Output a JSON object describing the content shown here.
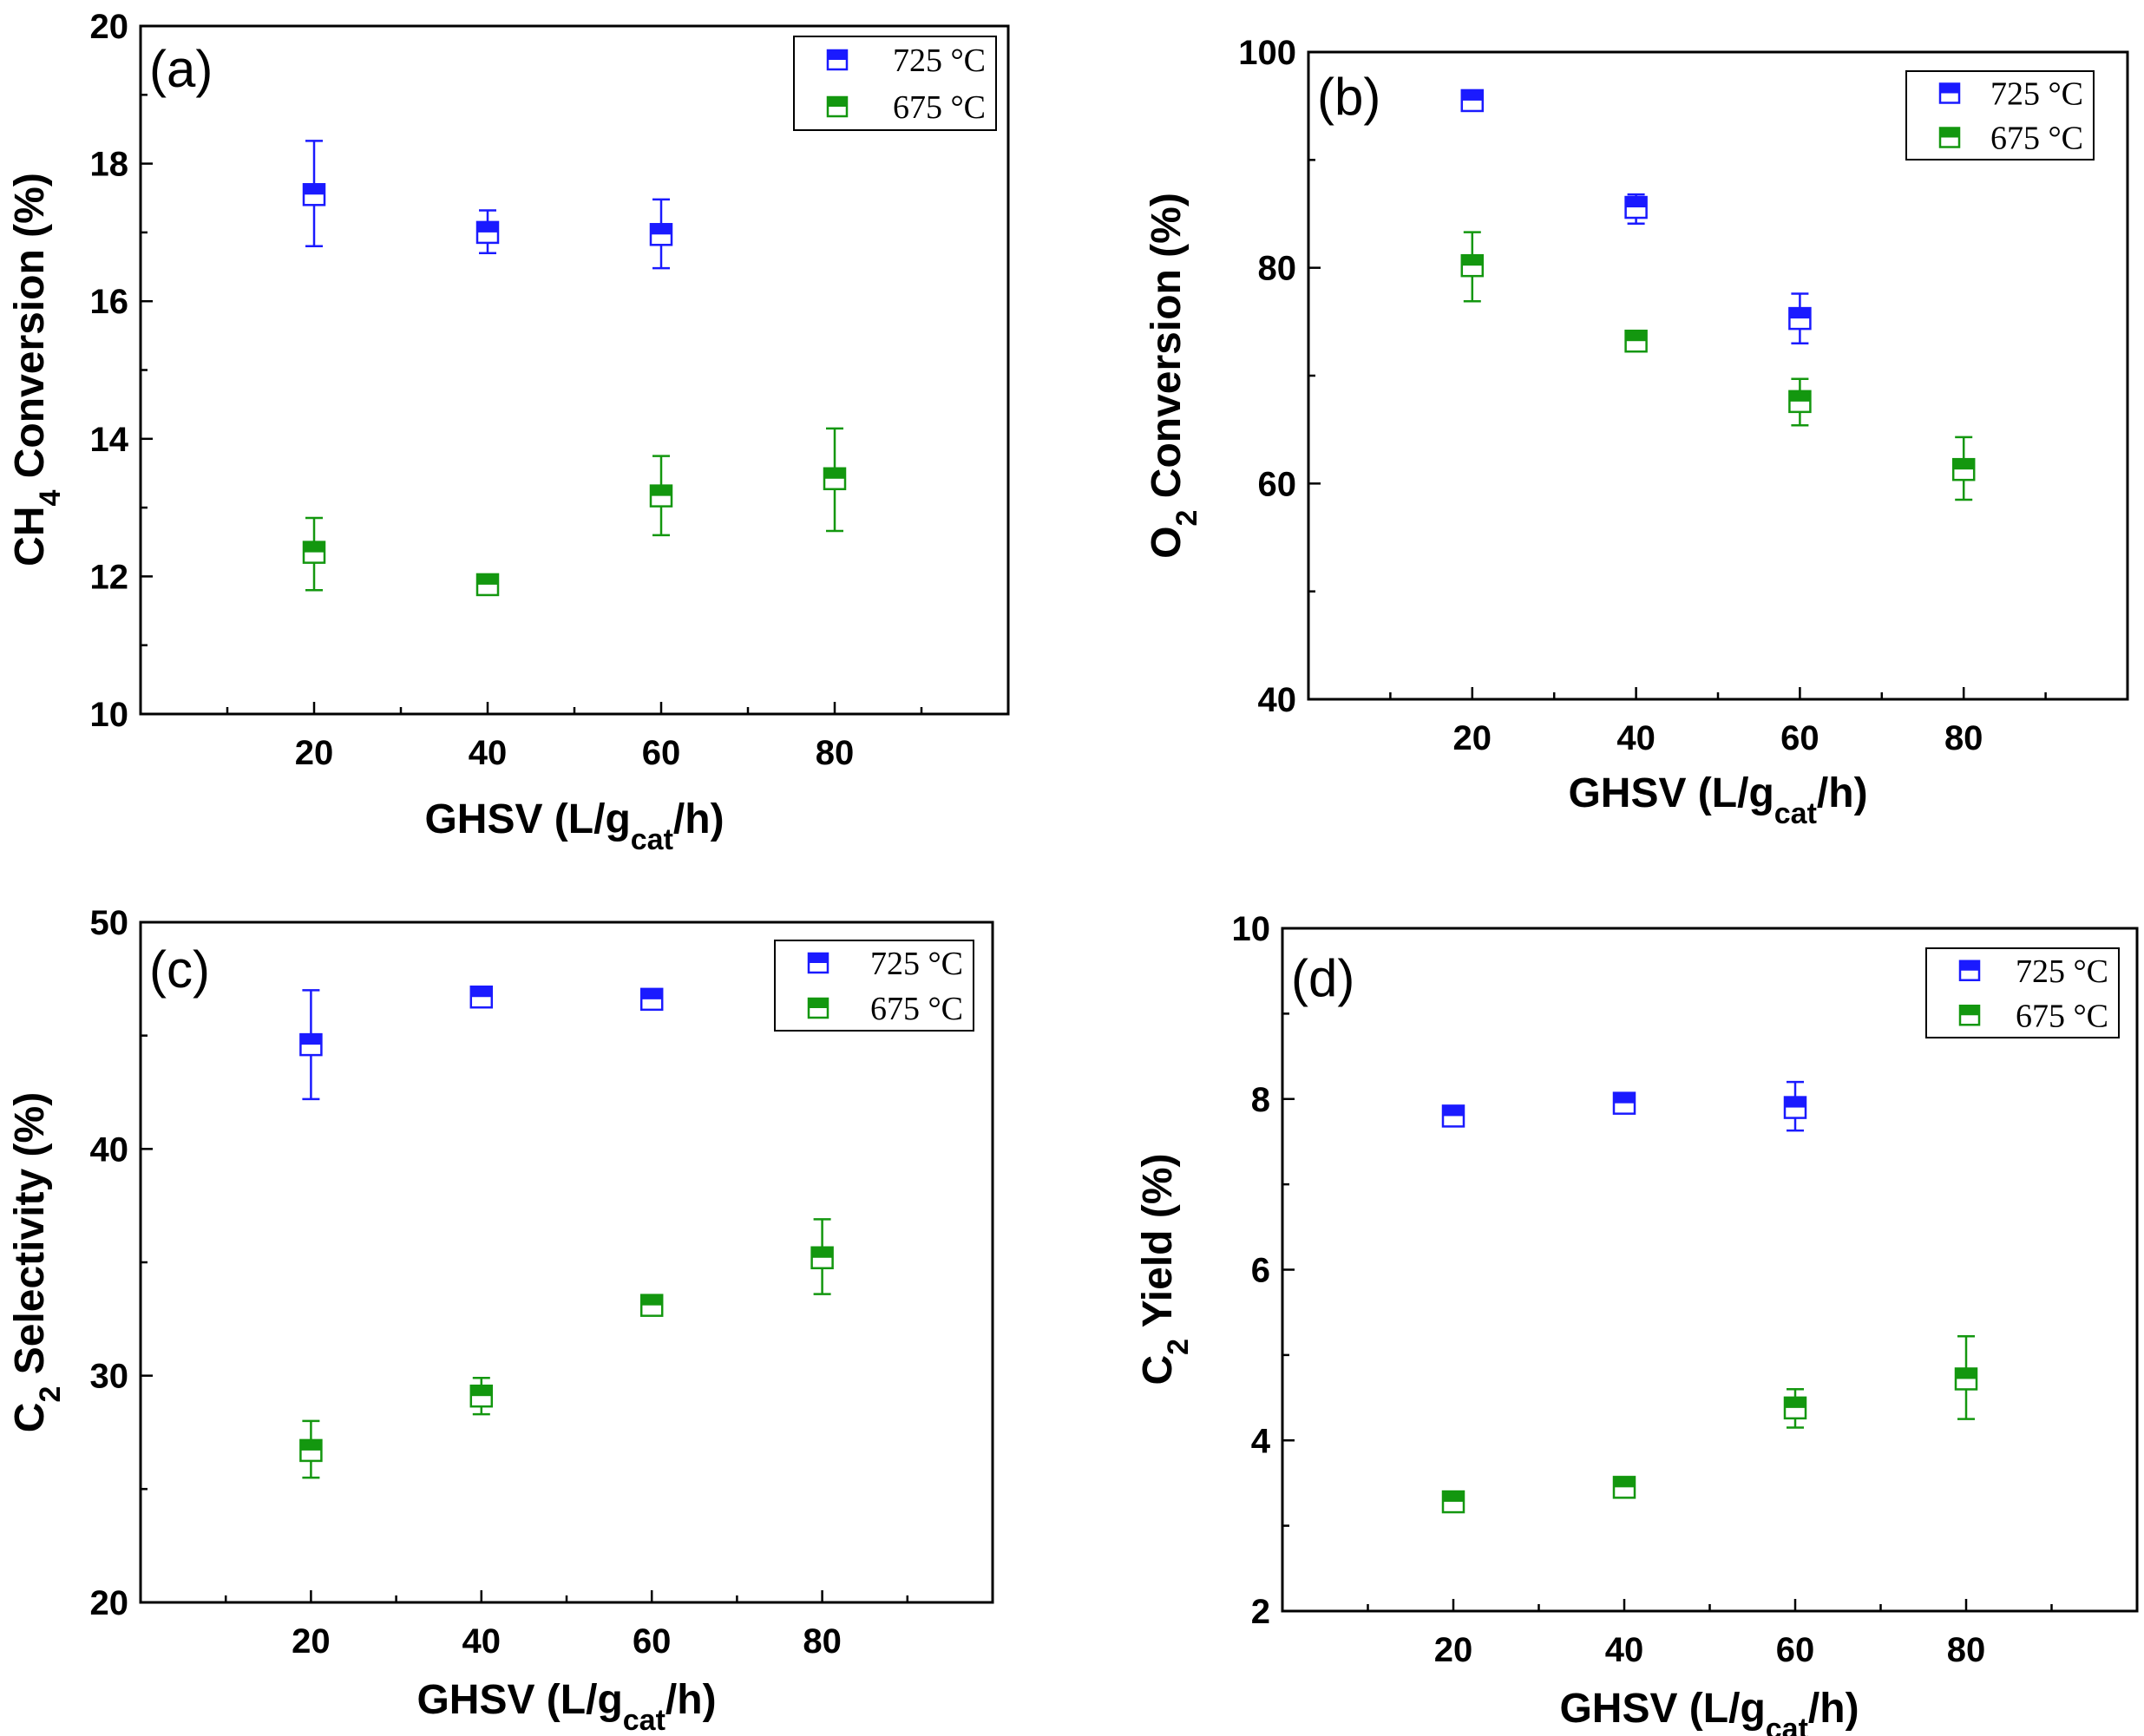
{
  "chart_data": [
    {
      "id": "a",
      "type": "scatter",
      "panel_label": "(a)",
      "title": "",
      "xlabel": "GHSV (L/g",
      "xlabel_sub": "cat",
      "xlabel_tail": "/h)",
      "ylabel": "CH",
      "ylabel_sub": "4",
      "ylabel_tail": " Conversion (%)",
      "xlim": [
        0,
        100
      ],
      "ylim": [
        10,
        20
      ],
      "xticks": [
        20,
        40,
        60,
        80
      ],
      "yticks": [
        10,
        12,
        14,
        16,
        18,
        20
      ],
      "series": [
        {
          "name": "725 °C",
          "color": "#1a1aff",
          "x": [
            20,
            40,
            60
          ],
          "y": [
            17.55,
            17.0,
            16.97
          ],
          "err_low": [
            16.8,
            16.7,
            16.48
          ],
          "err_high": [
            18.33,
            17.32,
            17.48
          ]
        },
        {
          "name": "675 °C",
          "color": "#13970f",
          "x": [
            20,
            40,
            60,
            80
          ],
          "y": [
            12.35,
            11.88,
            13.17,
            13.42
          ],
          "err_low": [
            11.8,
            11.75,
            12.6,
            12.66
          ],
          "err_high": [
            12.85,
            11.98,
            13.75,
            14.15
          ]
        }
      ]
    },
    {
      "id": "b",
      "type": "scatter",
      "panel_label": "(b)",
      "title": "",
      "xlabel": "GHSV (L/g",
      "xlabel_sub": "cat",
      "xlabel_tail": "/h)",
      "ylabel": "O",
      "ylabel_sub": "2",
      "ylabel_tail": " Conversion (%)",
      "xlim": [
        0,
        100
      ],
      "ylim": [
        40,
        100
      ],
      "xticks": [
        20,
        40,
        60,
        80
      ],
      "yticks": [
        40,
        60,
        80,
        100
      ],
      "series": [
        {
          "name": "725 °C",
          "color": "#1a1aff",
          "x": [
            20,
            40,
            60
          ],
          "y": [
            95.5,
            85.6,
            75.3
          ],
          "err_low": [
            95.2,
            84.1,
            73.0
          ],
          "err_high": [
            95.8,
            86.8,
            77.6
          ]
        },
        {
          "name": "675 °C",
          "color": "#13970f",
          "x": [
            20,
            40,
            60,
            80
          ],
          "y": [
            80.2,
            73.2,
            67.6,
            61.3
          ],
          "err_low": [
            76.9,
            72.5,
            65.4,
            58.5
          ],
          "err_high": [
            83.3,
            73.8,
            69.7,
            64.3
          ]
        }
      ]
    },
    {
      "id": "c",
      "type": "scatter",
      "panel_label": "(c)",
      "title": "",
      "xlabel": "GHSV (L/g",
      "xlabel_sub": "cat",
      "xlabel_tail": "/h)",
      "ylabel": "C",
      "ylabel_sub": "2",
      "ylabel_tail": " Selectivity (%)",
      "xlim": [
        0,
        100
      ],
      "ylim": [
        20,
        50
      ],
      "xticks": [
        20,
        40,
        60,
        80
      ],
      "yticks": [
        20,
        30,
        40,
        50
      ],
      "series": [
        {
          "name": "725 °C",
          "color": "#1a1aff",
          "x": [
            20,
            40,
            60
          ],
          "y": [
            44.6,
            46.7,
            46.6
          ],
          "err_low": [
            42.2,
            46.3,
            46.3
          ],
          "err_high": [
            47.0,
            46.9,
            46.9
          ]
        },
        {
          "name": "675 °C",
          "color": "#13970f",
          "x": [
            20,
            40,
            60,
            80
          ],
          "y": [
            26.7,
            29.1,
            33.1,
            35.2
          ],
          "err_low": [
            25.5,
            28.3,
            32.8,
            33.6
          ],
          "err_high": [
            28.0,
            29.9,
            33.5,
            36.9
          ]
        }
      ]
    },
    {
      "id": "d",
      "type": "scatter",
      "panel_label": "(d)",
      "title": "",
      "xlabel": "GHSV (L/g",
      "xlabel_sub": "cat",
      "xlabel_tail": "/h)",
      "ylabel": "C",
      "ylabel_sub": "2",
      "ylabel_tail": " Yield (%)",
      "xlim": [
        0,
        100
      ],
      "ylim": [
        2,
        10
      ],
      "xticks": [
        20,
        40,
        60,
        80
      ],
      "yticks": [
        2,
        4,
        6,
        8,
        10
      ],
      "series": [
        {
          "name": "725 °C",
          "color": "#1a1aff",
          "x": [
            20,
            40,
            60
          ],
          "y": [
            7.8,
            7.95,
            7.9
          ],
          "err_low": [
            7.74,
            7.88,
            7.63
          ],
          "err_high": [
            7.88,
            8.02,
            8.2
          ]
        },
        {
          "name": "675 °C",
          "color": "#13970f",
          "x": [
            20,
            40,
            60,
            80
          ],
          "y": [
            3.28,
            3.45,
            4.38,
            4.72
          ],
          "err_low": [
            3.22,
            3.4,
            4.15,
            4.25
          ],
          "err_high": [
            3.33,
            3.5,
            4.6,
            5.22
          ]
        }
      ]
    }
  ]
}
